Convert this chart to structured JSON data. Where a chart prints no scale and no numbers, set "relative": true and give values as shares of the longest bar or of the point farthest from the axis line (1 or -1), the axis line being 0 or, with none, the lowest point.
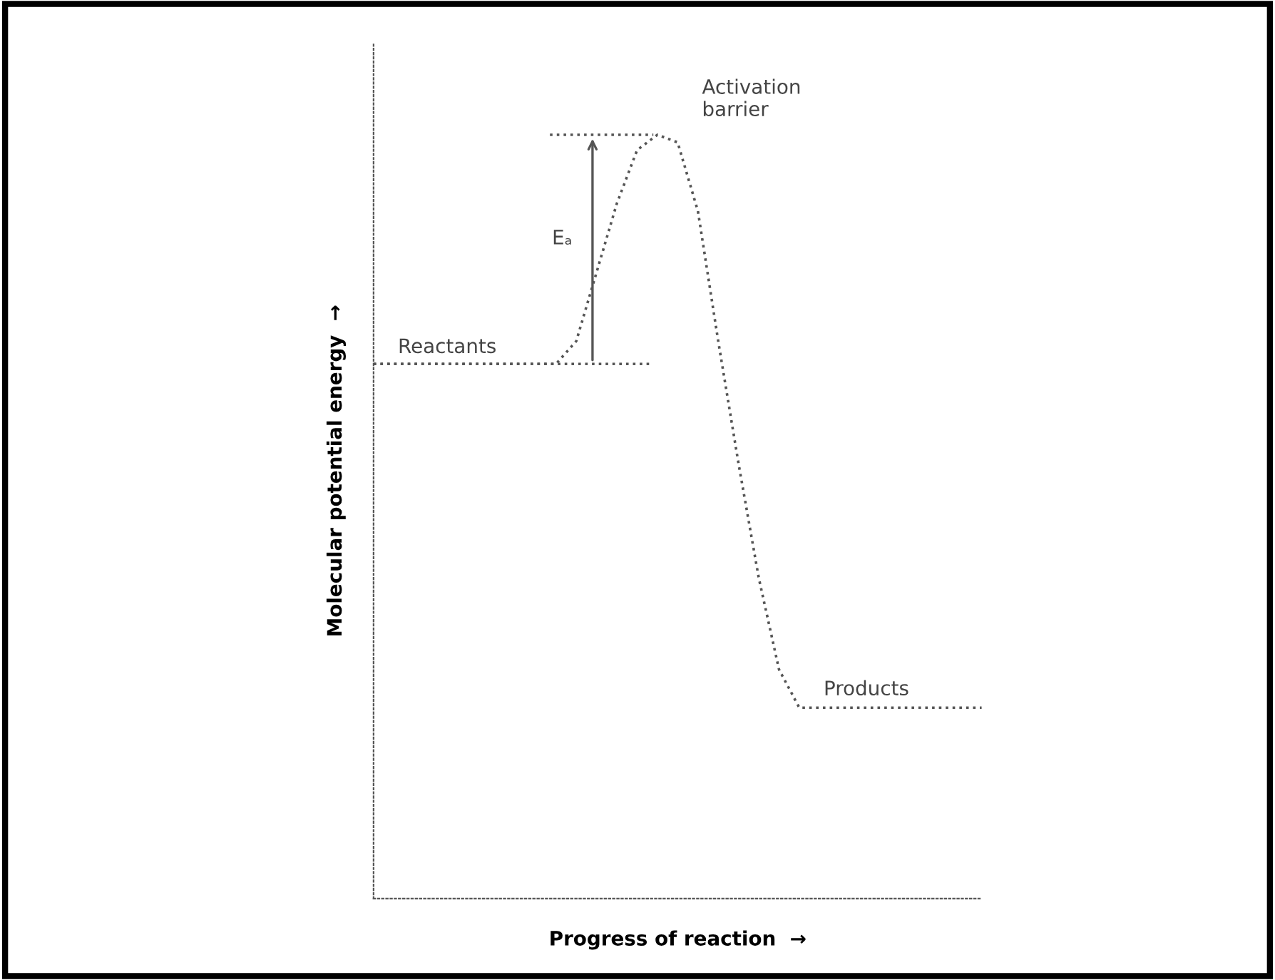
{
  "chart_data": {
    "type": "line",
    "relative": true,
    "xlabel": "Progress of reaction  →",
    "ylabel": "Molecular potential energy  →",
    "categories": [
      null,
      null,
      null,
      null,
      null,
      null,
      null,
      null,
      null,
      null,
      null,
      null,
      null,
      null,
      null,
      null,
      null,
      null,
      null,
      null,
      null,
      null,
      null,
      null,
      null,
      null,
      null,
      null,
      null,
      null,
      null
    ],
    "series": [
      {
        "color": "#555555",
        "values": [
          0.7,
          0.7,
          0.7,
          0.7,
          0.7,
          0.7,
          0.7,
          0.7,
          0.7,
          0.7,
          0.73,
          0.82,
          0.91,
          0.98,
          1.0,
          0.99,
          0.9,
          0.73,
          0.57,
          0.42,
          0.3,
          0.25,
          0.25,
          0.25,
          0.25,
          0.25,
          0.25,
          0.25,
          0.25,
          0.25,
          0.25
        ]
      }
    ],
    "ref_lines": [
      {
        "axis": "y",
        "value": 1.0,
        "label": null,
        "color": "#555555",
        "line_style": "dotted"
      },
      {
        "axis": "y",
        "value": 0.7,
        "label": null,
        "color": "#555555",
        "line_style": "dotted"
      }
    ],
    "annotations": [
      "Reactants",
      "Activation\nbarrier",
      "Products",
      "Eₐ"
    ],
    "line_style": "dotted",
    "marker": "none"
  }
}
